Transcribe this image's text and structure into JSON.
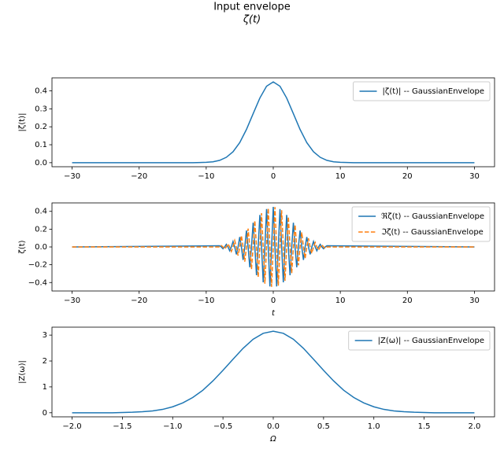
{
  "suptitle": [
    "Input envelope",
    "ζ(t)"
  ],
  "chart_data": [
    {
      "type": "line",
      "ylabel": "|ζ(t)|",
      "legend": "upper right",
      "xlim": [
        -33,
        33
      ],
      "ylim": [
        -0.0225,
        0.4725
      ],
      "xticks": [
        {
          "value": -30,
          "label": "−30"
        },
        {
          "value": -20,
          "label": "−20"
        },
        {
          "value": -10,
          "label": "−10"
        },
        0,
        10,
        20,
        30
      ],
      "yticks": [
        {
          "value": 0,
          "label": "0.0"
        },
        0.1,
        0.2,
        0.3,
        0.4
      ],
      "x": [
        -30,
        -20,
        -15,
        -12,
        -10,
        -9,
        -8,
        -7,
        -6,
        -5,
        -4,
        -3,
        -2,
        -1,
        0,
        1,
        2,
        3,
        4,
        5,
        6,
        7,
        8,
        9,
        10,
        12,
        15,
        20,
        30
      ],
      "series": [
        {
          "name": "|ζ(t)| -- GaussianEnvelope",
          "color": "#1f77b4",
          "values": [
            0,
            0,
            0,
            0,
            0.002,
            0.005,
            0.013,
            0.03,
            0.061,
            0.112,
            0.185,
            0.273,
            0.36,
            0.426,
            0.45,
            0.426,
            0.36,
            0.273,
            0.185,
            0.112,
            0.061,
            0.03,
            0.013,
            0.005,
            0.002,
            0,
            0,
            0,
            0
          ]
        }
      ]
    },
    {
      "type": "line",
      "xlabel": "t",
      "ylabel": "ζ(t)",
      "legend": "upper right",
      "xlim": [
        -33,
        33
      ],
      "ylim": [
        -0.495,
        0.495
      ],
      "xticks": [
        {
          "value": -30,
          "label": "−30"
        },
        {
          "value": -20,
          "label": "−20"
        },
        {
          "value": -10,
          "label": "−10"
        },
        0,
        10,
        20,
        30
      ],
      "yticks": [
        {
          "value": -0.4,
          "label": "−0.4"
        },
        {
          "value": -0.2,
          "label": "−0.2"
        },
        {
          "value": 0,
          "label": "0.0"
        },
        0.2,
        0.4
      ],
      "x": [
        -30,
        -8,
        -7.75,
        -7.5,
        -7.25,
        -7,
        -6.75,
        -6.5,
        -6.25,
        -6,
        -5.75,
        -5.5,
        -5.25,
        -5,
        -4.75,
        -4.5,
        -4.25,
        -4,
        -3.75,
        -3.5,
        -3.25,
        -3,
        -2.75,
        -2.5,
        -2.25,
        -2,
        -1.75,
        -1.5,
        -1.25,
        -1,
        -0.75,
        -0.5,
        -0.25,
        0,
        0.25,
        0.5,
        0.75,
        1,
        1.25,
        1.5,
        1.75,
        2,
        2.25,
        2.5,
        2.75,
        3,
        3.25,
        3.5,
        3.75,
        4,
        4.25,
        4.5,
        4.75,
        5,
        5.25,
        5.5,
        5.75,
        6,
        6.25,
        6.5,
        6.75,
        7,
        7.25,
        7.5,
        7.75,
        8,
        30
      ],
      "series": [
        {
          "name": "ℜζ(t) -- GaussianEnvelope",
          "color": "#1f77b4",
          "dashed": false,
          "values": [
            0,
            0.013,
            0,
            -0.02,
            0,
            0.03,
            0,
            -0.043,
            0,
            0.061,
            0,
            -0.084,
            0,
            0.112,
            0,
            -0.146,
            0,
            0.185,
            0,
            -0.228,
            0,
            0.273,
            0,
            -0.318,
            0,
            0.36,
            0,
            -0.397,
            0,
            0.426,
            0,
            -0.444,
            0,
            0.45,
            0,
            -0.444,
            0,
            0.426,
            0,
            -0.397,
            0,
            0.36,
            0,
            -0.318,
            0,
            0.273,
            0,
            -0.228,
            0,
            0.185,
            0,
            -0.146,
            0,
            0.112,
            0,
            -0.084,
            0,
            0.061,
            0,
            -0.043,
            0,
            0.03,
            0,
            -0.02,
            0,
            0.013,
            0
          ]
        },
        {
          "name": "ℑζ(t) -- GaussianEnvelope",
          "color": "#ff7f0e",
          "dashed": true,
          "values": [
            0,
            0,
            0.016,
            0,
            -0.024,
            0,
            0.036,
            0,
            -0.051,
            0,
            0.072,
            0,
            -0.097,
            0,
            0.129,
            0,
            -0.165,
            0,
            0.206,
            0,
            -0.25,
            0,
            0.296,
            0,
            -0.34,
            0,
            0.38,
            0,
            -0.413,
            0,
            0.436,
            0,
            -0.448,
            0,
            0.448,
            0,
            -0.436,
            0,
            0.413,
            0,
            -0.38,
            0,
            0.34,
            0,
            -0.296,
            0,
            0.25,
            0,
            -0.206,
            0,
            0.165,
            0,
            -0.129,
            0,
            0.097,
            0,
            -0.072,
            0,
            0.051,
            0,
            -0.036,
            0,
            0.024,
            0,
            -0.016,
            0,
            0
          ]
        }
      ]
    },
    {
      "type": "line",
      "xlabel": "Ω",
      "ylabel": "|Z(ω)|",
      "legend": "upper right",
      "xlim": [
        -2.2,
        2.2
      ],
      "ylim": [
        -0.1575,
        3.3075
      ],
      "xticks": [
        {
          "value": -2,
          "label": "−2.0"
        },
        {
          "value": -1.5,
          "label": "−1.5"
        },
        {
          "value": -1,
          "label": "−1.0"
        },
        {
          "value": -0.5,
          "label": "−0.5"
        },
        {
          "value": 0,
          "label": "0.0"
        },
        0.5,
        {
          "value": 1,
          "label": "1.0"
        },
        1.5,
        {
          "value": 2,
          "label": "2.0"
        }
      ],
      "yticks": [
        0,
        1,
        2,
        3
      ],
      "x": [
        -2,
        -1.6,
        -1.5,
        -1.4,
        -1.3,
        -1.2,
        -1.1,
        -1,
        -0.9,
        -0.8,
        -0.7,
        -0.6,
        -0.5,
        -0.4,
        -0.3,
        -0.2,
        -0.1,
        0,
        0.1,
        0.2,
        0.3,
        0.4,
        0.5,
        0.6,
        0.7,
        0.8,
        0.9,
        1,
        1.1,
        1.2,
        1.3,
        1.4,
        1.5,
        1.6,
        2
      ],
      "series": [
        {
          "name": "|Z(ω)| -- GaussianEnvelope",
          "color": "#1f77b4",
          "values": [
            0,
            0,
            0.01,
            0.02,
            0.04,
            0.07,
            0.13,
            0.23,
            0.38,
            0.59,
            0.87,
            1.23,
            1.64,
            2.07,
            2.49,
            2.84,
            3.07,
            3.15,
            3.07,
            2.84,
            2.49,
            2.07,
            1.64,
            1.23,
            0.87,
            0.59,
            0.38,
            0.23,
            0.13,
            0.07,
            0.04,
            0.02,
            0.01,
            0,
            0
          ]
        }
      ]
    }
  ]
}
